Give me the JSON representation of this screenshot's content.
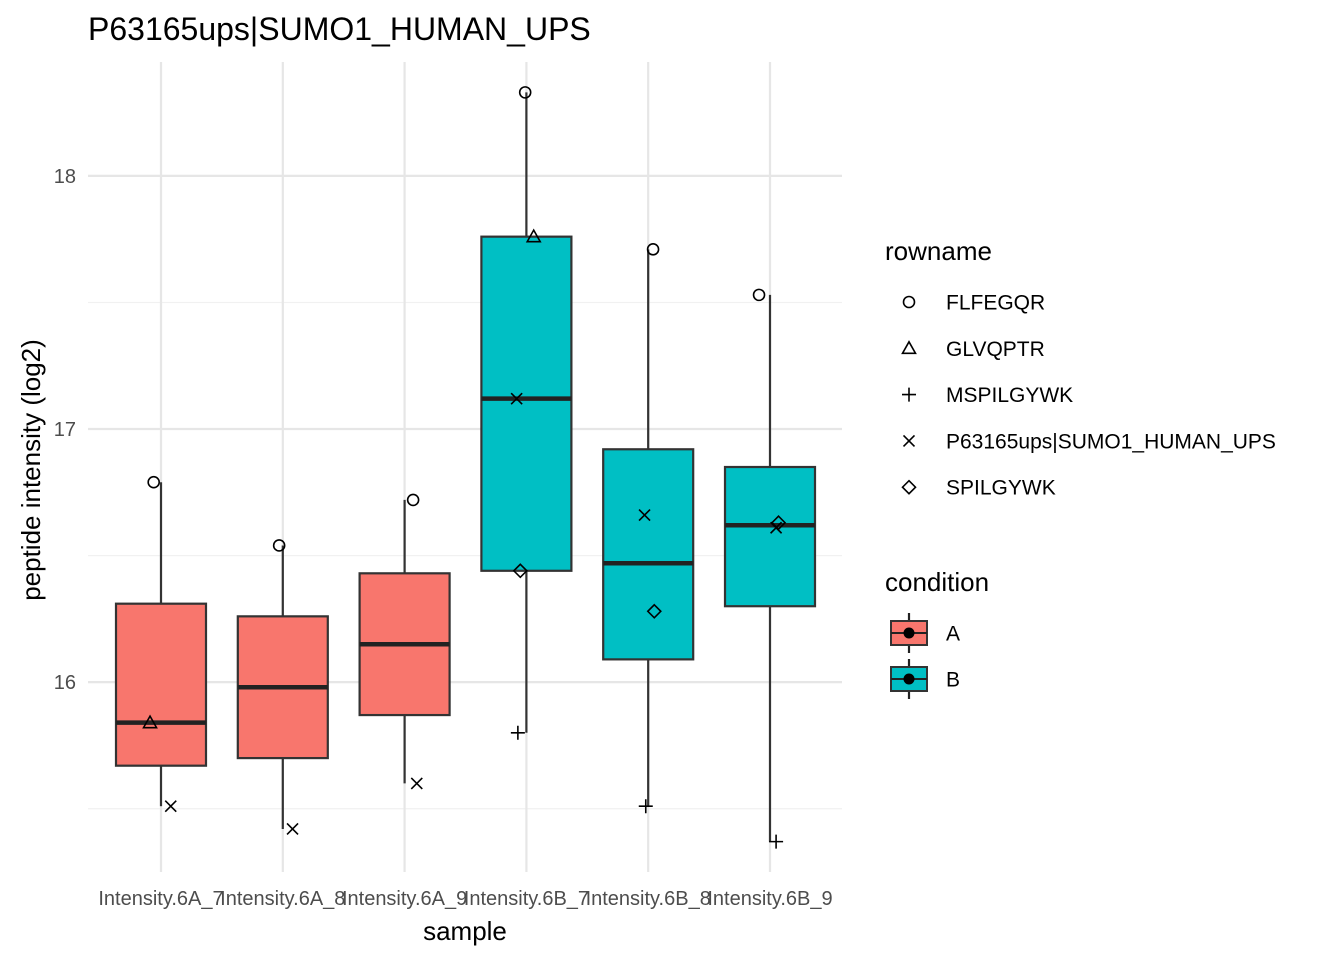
{
  "chart_data": {
    "type": "box",
    "title": "P63165ups|SUMO1_HUMAN_UPS",
    "xlabel": "sample",
    "ylabel": "peptide intensity (log2)",
    "categories": [
      "Intensity.6A_7",
      "Intensity.6A_8",
      "Intensity.6A_9",
      "Intensity.6B_7",
      "Intensity.6B_8",
      "Intensity.6B_9"
    ],
    "ylim": [
      15.25,
      18.45
    ],
    "yticks": [
      16,
      17,
      18
    ],
    "grid": true,
    "conditions": [
      {
        "name": "A",
        "color": "#F8766D"
      },
      {
        "name": "B",
        "color": "#00BFC4"
      }
    ],
    "boxes": [
      {
        "sample": "Intensity.6A_7",
        "condition": "A",
        "lower": 15.51,
        "q1": 15.67,
        "median": 15.84,
        "q3": 16.31,
        "upper": 16.79
      },
      {
        "sample": "Intensity.6A_8",
        "condition": "A",
        "lower": 15.42,
        "q1": 15.7,
        "median": 15.98,
        "q3": 16.26,
        "upper": 16.54
      },
      {
        "sample": "Intensity.6A_9",
        "condition": "A",
        "lower": 15.6,
        "q1": 15.87,
        "median": 16.15,
        "q3": 16.43,
        "upper": 16.72
      },
      {
        "sample": "Intensity.6B_7",
        "condition": "B",
        "lower": 15.8,
        "q1": 16.44,
        "median": 17.12,
        "q3": 17.76,
        "upper": 18.33
      },
      {
        "sample": "Intensity.6B_8",
        "condition": "B",
        "lower": 15.51,
        "q1": 16.09,
        "median": 16.47,
        "q3": 16.92,
        "upper": 17.71
      },
      {
        "sample": "Intensity.6B_9",
        "condition": "B",
        "lower": 15.37,
        "q1": 16.3,
        "median": 16.62,
        "q3": 16.85,
        "upper": 17.53
      }
    ],
    "points": [
      {
        "sample": "Intensity.6A_7",
        "peptide": "FLFEGQR",
        "x_offset": -0.06,
        "y": 16.79
      },
      {
        "sample": "Intensity.6A_7",
        "peptide": "GLVQPTR",
        "x_offset": -0.09,
        "y": 15.84
      },
      {
        "sample": "Intensity.6A_7",
        "peptide": "P63165ups|SUMO1_HUMAN_UPS",
        "x_offset": 0.08,
        "y": 15.51
      },
      {
        "sample": "Intensity.6A_8",
        "peptide": "FLFEGQR",
        "x_offset": -0.03,
        "y": 16.54
      },
      {
        "sample": "Intensity.6A_8",
        "peptide": "P63165ups|SUMO1_HUMAN_UPS",
        "x_offset": 0.08,
        "y": 15.42
      },
      {
        "sample": "Intensity.6A_9",
        "peptide": "FLFEGQR",
        "x_offset": 0.07,
        "y": 16.72
      },
      {
        "sample": "Intensity.6A_9",
        "peptide": "P63165ups|SUMO1_HUMAN_UPS",
        "x_offset": 0.1,
        "y": 15.6
      },
      {
        "sample": "Intensity.6B_7",
        "peptide": "FLFEGQR",
        "x_offset": -0.01,
        "y": 18.33
      },
      {
        "sample": "Intensity.6B_7",
        "peptide": "GLVQPTR",
        "x_offset": 0.06,
        "y": 17.76
      },
      {
        "sample": "Intensity.6B_7",
        "peptide": "P63165ups|SUMO1_HUMAN_UPS",
        "x_offset": -0.08,
        "y": 17.12
      },
      {
        "sample": "Intensity.6B_7",
        "peptide": "SPILGYWK",
        "x_offset": -0.05,
        "y": 16.44
      },
      {
        "sample": "Intensity.6B_7",
        "peptide": "MSPILGYWK",
        "x_offset": -0.07,
        "y": 15.8
      },
      {
        "sample": "Intensity.6B_8",
        "peptide": "FLFEGQR",
        "x_offset": 0.04,
        "y": 17.71
      },
      {
        "sample": "Intensity.6B_8",
        "peptide": "P63165ups|SUMO1_HUMAN_UPS",
        "x_offset": -0.03,
        "y": 16.66
      },
      {
        "sample": "Intensity.6B_8",
        "peptide": "SPILGYWK",
        "x_offset": 0.05,
        "y": 16.28
      },
      {
        "sample": "Intensity.6B_8",
        "peptide": "MSPILGYWK",
        "x_offset": -0.02,
        "y": 15.51
      },
      {
        "sample": "Intensity.6B_9",
        "peptide": "FLFEGQR",
        "x_offset": -0.09,
        "y": 17.53
      },
      {
        "sample": "Intensity.6B_9",
        "peptide": "SPILGYWK",
        "x_offset": 0.07,
        "y": 16.63
      },
      {
        "sample": "Intensity.6B_9",
        "peptide": "P63165ups|SUMO1_HUMAN_UPS",
        "x_offset": 0.05,
        "y": 16.61
      },
      {
        "sample": "Intensity.6B_9",
        "peptide": "MSPILGYWK",
        "x_offset": 0.05,
        "y": 15.37
      }
    ],
    "legend_rowname": {
      "title": "rowname",
      "entries": [
        {
          "name": "FLFEGQR",
          "shape": "circle"
        },
        {
          "name": "GLVQPTR",
          "shape": "triangle"
        },
        {
          "name": "MSPILGYWK",
          "shape": "plus"
        },
        {
          "name": "P63165ups|SUMO1_HUMAN_UPS",
          "shape": "cross"
        },
        {
          "name": "SPILGYWK",
          "shape": "diamond"
        }
      ]
    },
    "legend_condition": {
      "title": "condition",
      "entries": [
        {
          "name": "A",
          "color": "#F8766D"
        },
        {
          "name": "B",
          "color": "#00BFC4"
        }
      ]
    }
  }
}
